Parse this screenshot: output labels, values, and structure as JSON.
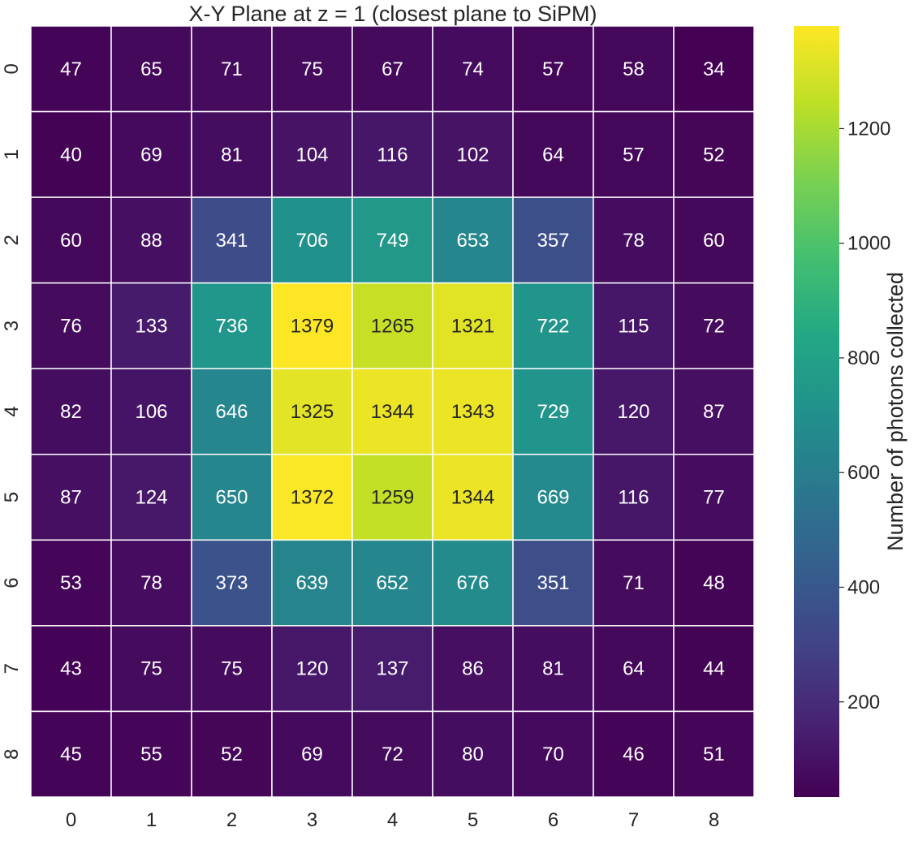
{
  "chart_data": {
    "type": "heatmap",
    "title": "X-Y Plane at z = 1 (closest plane to SiPM)",
    "x_categories": [
      "0",
      "1",
      "2",
      "3",
      "4",
      "5",
      "6",
      "7",
      "8"
    ],
    "y_categories": [
      "0",
      "1",
      "2",
      "3",
      "4",
      "5",
      "6",
      "7",
      "8"
    ],
    "values": [
      [
        47,
        65,
        71,
        75,
        67,
        74,
        57,
        58,
        34
      ],
      [
        40,
        69,
        81,
        104,
        116,
        102,
        64,
        57,
        52
      ],
      [
        60,
        88,
        341,
        706,
        749,
        653,
        357,
        78,
        60
      ],
      [
        76,
        133,
        736,
        1379,
        1265,
        1321,
        722,
        115,
        72
      ],
      [
        82,
        106,
        646,
        1325,
        1344,
        1343,
        729,
        120,
        87
      ],
      [
        87,
        124,
        650,
        1372,
        1259,
        1344,
        669,
        116,
        77
      ],
      [
        53,
        78,
        373,
        639,
        652,
        676,
        351,
        71,
        48
      ],
      [
        43,
        75,
        75,
        120,
        137,
        86,
        81,
        64,
        44
      ],
      [
        45,
        55,
        52,
        69,
        72,
        80,
        70,
        46,
        51
      ]
    ],
    "colormap": "viridis",
    "colorbar": {
      "label": "Number of photons collected",
      "min": 34,
      "max": 1379,
      "ticks": [
        200,
        400,
        600,
        800,
        1000,
        1200
      ],
      "tick_labels": [
        "200",
        "400",
        "600",
        "800",
        "1000",
        "1200"
      ]
    },
    "cell_border_color": "#ffffff",
    "grid": false
  }
}
